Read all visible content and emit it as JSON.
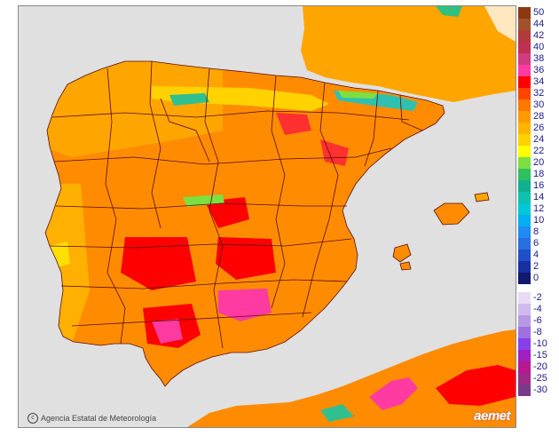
{
  "map": {
    "credit_text": "Agencia Estatal de Meteorología",
    "logo_text": "aemet",
    "land_color": "#ff8c00",
    "sea_color": "#e0e0e0",
    "border_color": "#5a0a0a"
  },
  "legend": {
    "items": [
      {
        "label": "50",
        "color": "#8b3a0f"
      },
      {
        "label": "44",
        "color": "#a0522d"
      },
      {
        "label": "42",
        "color": "#b33a3a"
      },
      {
        "label": "40",
        "color": "#c03050"
      },
      {
        "label": "38",
        "color": "#d03c80"
      },
      {
        "label": "36",
        "color": "#ff3aa0"
      },
      {
        "label": "34",
        "color": "#ff0000"
      },
      {
        "label": "32",
        "color": "#ff4500"
      },
      {
        "label": "30",
        "color": "#ff7800"
      },
      {
        "label": "28",
        "color": "#ff9a00"
      },
      {
        "label": "26",
        "color": "#ffb400"
      },
      {
        "label": "24",
        "color": "#ffd200"
      },
      {
        "label": "22",
        "color": "#ffff00"
      },
      {
        "label": "20",
        "color": "#7ce040"
      },
      {
        "label": "18",
        "color": "#30c060"
      },
      {
        "label": "16",
        "color": "#10b090"
      },
      {
        "label": "14",
        "color": "#10c0b0"
      },
      {
        "label": "12",
        "color": "#00c8d8"
      },
      {
        "label": "10",
        "color": "#00b0f0"
      },
      {
        "label": "8",
        "color": "#1e8cf0"
      },
      {
        "label": "6",
        "color": "#2870e0"
      },
      {
        "label": "4",
        "color": "#2050c8"
      },
      {
        "label": "2",
        "color": "#1830a0"
      },
      {
        "label": "0",
        "color": "#101870"
      },
      {
        "label": "-2",
        "color": "#e8dcf4"
      },
      {
        "label": "-4",
        "color": "#d0bcec"
      },
      {
        "label": "-6",
        "color": "#b898e4"
      },
      {
        "label": "-8",
        "color": "#a070e0"
      },
      {
        "label": "-10",
        "color": "#8840e8"
      },
      {
        "label": "-15",
        "color": "#a020c0"
      },
      {
        "label": "-20",
        "color": "#b81890"
      },
      {
        "label": "-25",
        "color": "#9c2c88"
      },
      {
        "label": "-30",
        "color": "#7a3a8a"
      }
    ]
  }
}
